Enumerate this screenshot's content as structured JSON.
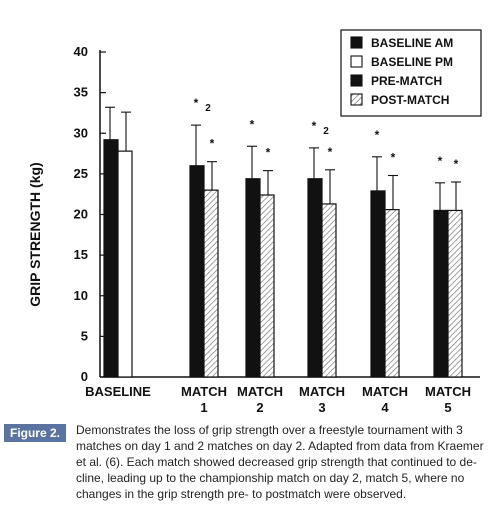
{
  "chart_data": {
    "type": "bar",
    "ylabel": "GRIP STRENGTH (kg)",
    "xlabel": "",
    "ylim": [
      0,
      40
    ],
    "yticks": [
      0,
      5,
      10,
      15,
      20,
      25,
      30,
      35,
      40
    ],
    "groups": [
      {
        "label": [
          "BASELINE"
        ],
        "bars": [
          {
            "series": "BASELINE AM",
            "value": 29.2,
            "error": 4.0,
            "annot": ""
          },
          {
            "series": "BASELINE PM",
            "value": 27.8,
            "error": 4.8,
            "annot": ""
          }
        ]
      },
      {
        "label": [
          "MATCH",
          "1"
        ],
        "bars": [
          {
            "series": "PRE-MATCH",
            "value": 26.0,
            "error": 5.0,
            "annot": "* 2"
          },
          {
            "series": "POST-MATCH",
            "value": 23.0,
            "error": 3.5,
            "annot": "*"
          }
        ]
      },
      {
        "label": [
          "MATCH",
          "2"
        ],
        "bars": [
          {
            "series": "PRE-MATCH",
            "value": 24.4,
            "error": 4.0,
            "annot": "*"
          },
          {
            "series": "POST-MATCH",
            "value": 22.4,
            "error": 3.0,
            "annot": "*"
          }
        ]
      },
      {
        "label": [
          "MATCH",
          "3"
        ],
        "bars": [
          {
            "series": "PRE-MATCH",
            "value": 24.4,
            "error": 3.8,
            "annot": "* 2"
          },
          {
            "series": "POST-MATCH",
            "value": 21.3,
            "error": 4.2,
            "annot": "*"
          }
        ]
      },
      {
        "label": [
          "MATCH",
          "4"
        ],
        "bars": [
          {
            "series": "PRE-MATCH",
            "value": 22.9,
            "error": 4.2,
            "annot": "*"
          },
          {
            "series": "POST-MATCH",
            "value": 20.6,
            "error": 4.2,
            "annot": "*"
          }
        ]
      },
      {
        "label": [
          "MATCH",
          "5"
        ],
        "bars": [
          {
            "series": "PRE-MATCH",
            "value": 20.5,
            "error": 3.4,
            "annot": "*"
          },
          {
            "series": "POST-MATCH",
            "value": 20.5,
            "error": 3.5,
            "annot": "*"
          }
        ]
      }
    ],
    "legend": {
      "placement": "top-right",
      "entries": [
        {
          "name": "BASELINE AM",
          "fill": "solid"
        },
        {
          "name": "BASELINE PM",
          "fill": "open"
        },
        {
          "name": "PRE-MATCH",
          "fill": "solid"
        },
        {
          "name": "POST-MATCH",
          "fill": "hatched"
        }
      ]
    },
    "colors": {
      "ink": "#111111",
      "hatch": "#888888"
    }
  },
  "caption": {
    "label": "Figure 2.",
    "lines": [
      "Demonstrates the loss of grip strength over a freestyle tournament with 3",
      "matches on day 1 and 2 matches on day 2. Adapted from data from Kraemer",
      "et al. (6). Each match showed decreased grip strength that continued to de-",
      "cline, leading up to the championship match on day 2, match 5, where no",
      "changes in the grip strength pre- to postmatch were observed."
    ]
  }
}
